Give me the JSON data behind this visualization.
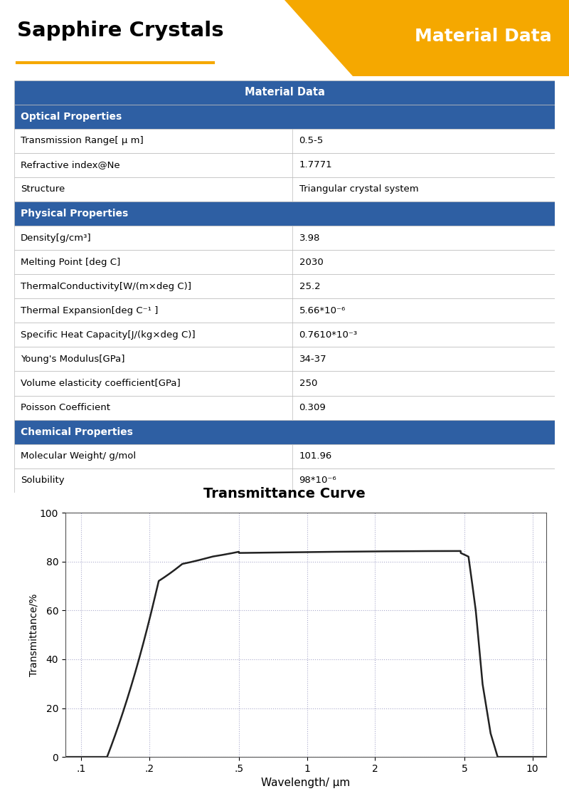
{
  "title_left": "Sapphire Crystals",
  "title_right": "Material Data",
  "title_bg_color": "#F5A800",
  "title_text_color_left": "#000000",
  "title_text_color_right": "#FFFFFF",
  "underline_color": "#F5A800",
  "header_bg": "#2E5FA3",
  "header_text": "Material Data",
  "section_bg": "#2E5FA3",
  "section_text_color": "#FFFFFF",
  "row_bg_white": "#FFFFFF",
  "border_color": "#BBBBBB",
  "table_data": [
    {
      "section": "Optical Properties",
      "rows": [
        [
          "Transmission Range[ μ m]",
          "0.5-5"
        ],
        [
          "Refractive index@Ne",
          "1.7771"
        ],
        [
          "Structure",
          "Triangular crystal system"
        ]
      ]
    },
    {
      "section": "Physical Properties",
      "rows": [
        [
          "Density[g/cm³]",
          "3.98"
        ],
        [
          "Melting Point [deg C]",
          "2030"
        ],
        [
          "ThermalConductivity[W/(m×deg C)]",
          "25.2"
        ],
        [
          "Thermal Expansion[deg C⁻¹ ]",
          "5.66*10⁻⁶"
        ],
        [
          "Specific Heat Capacity[J/(kg×deg C)]",
          "0.7610*10⁻³"
        ],
        [
          "Young's Modulus[GPa]",
          "34-37"
        ],
        [
          "Volume elasticity coefficient[GPa]",
          "250"
        ],
        [
          "Poisson Coefficient",
          "0.309"
        ]
      ]
    },
    {
      "section": "Chemical Properties",
      "rows": [
        [
          "Molecular Weight/ g/mol",
          "101.96"
        ],
        [
          "Solubility",
          "98*10⁻⁶"
        ]
      ]
    }
  ],
  "curve_title": "Transmittance Curve",
  "xlabel": "Wavelength/ μm",
  "ylabel": "Transmittance/%",
  "x_ticks": [
    0.1,
    0.2,
    0.5,
    1,
    2,
    5,
    10
  ],
  "x_tick_labels": [
    ".1",
    ".2",
    ".5",
    "1",
    "2",
    "5",
    "10"
  ],
  "y_ticks": [
    0,
    20,
    40,
    60,
    80,
    100
  ],
  "ylim": [
    0,
    100
  ],
  "curve_color": "#222222",
  "grid_color": "#AAAACC",
  "bg_color": "#FFFFFF"
}
